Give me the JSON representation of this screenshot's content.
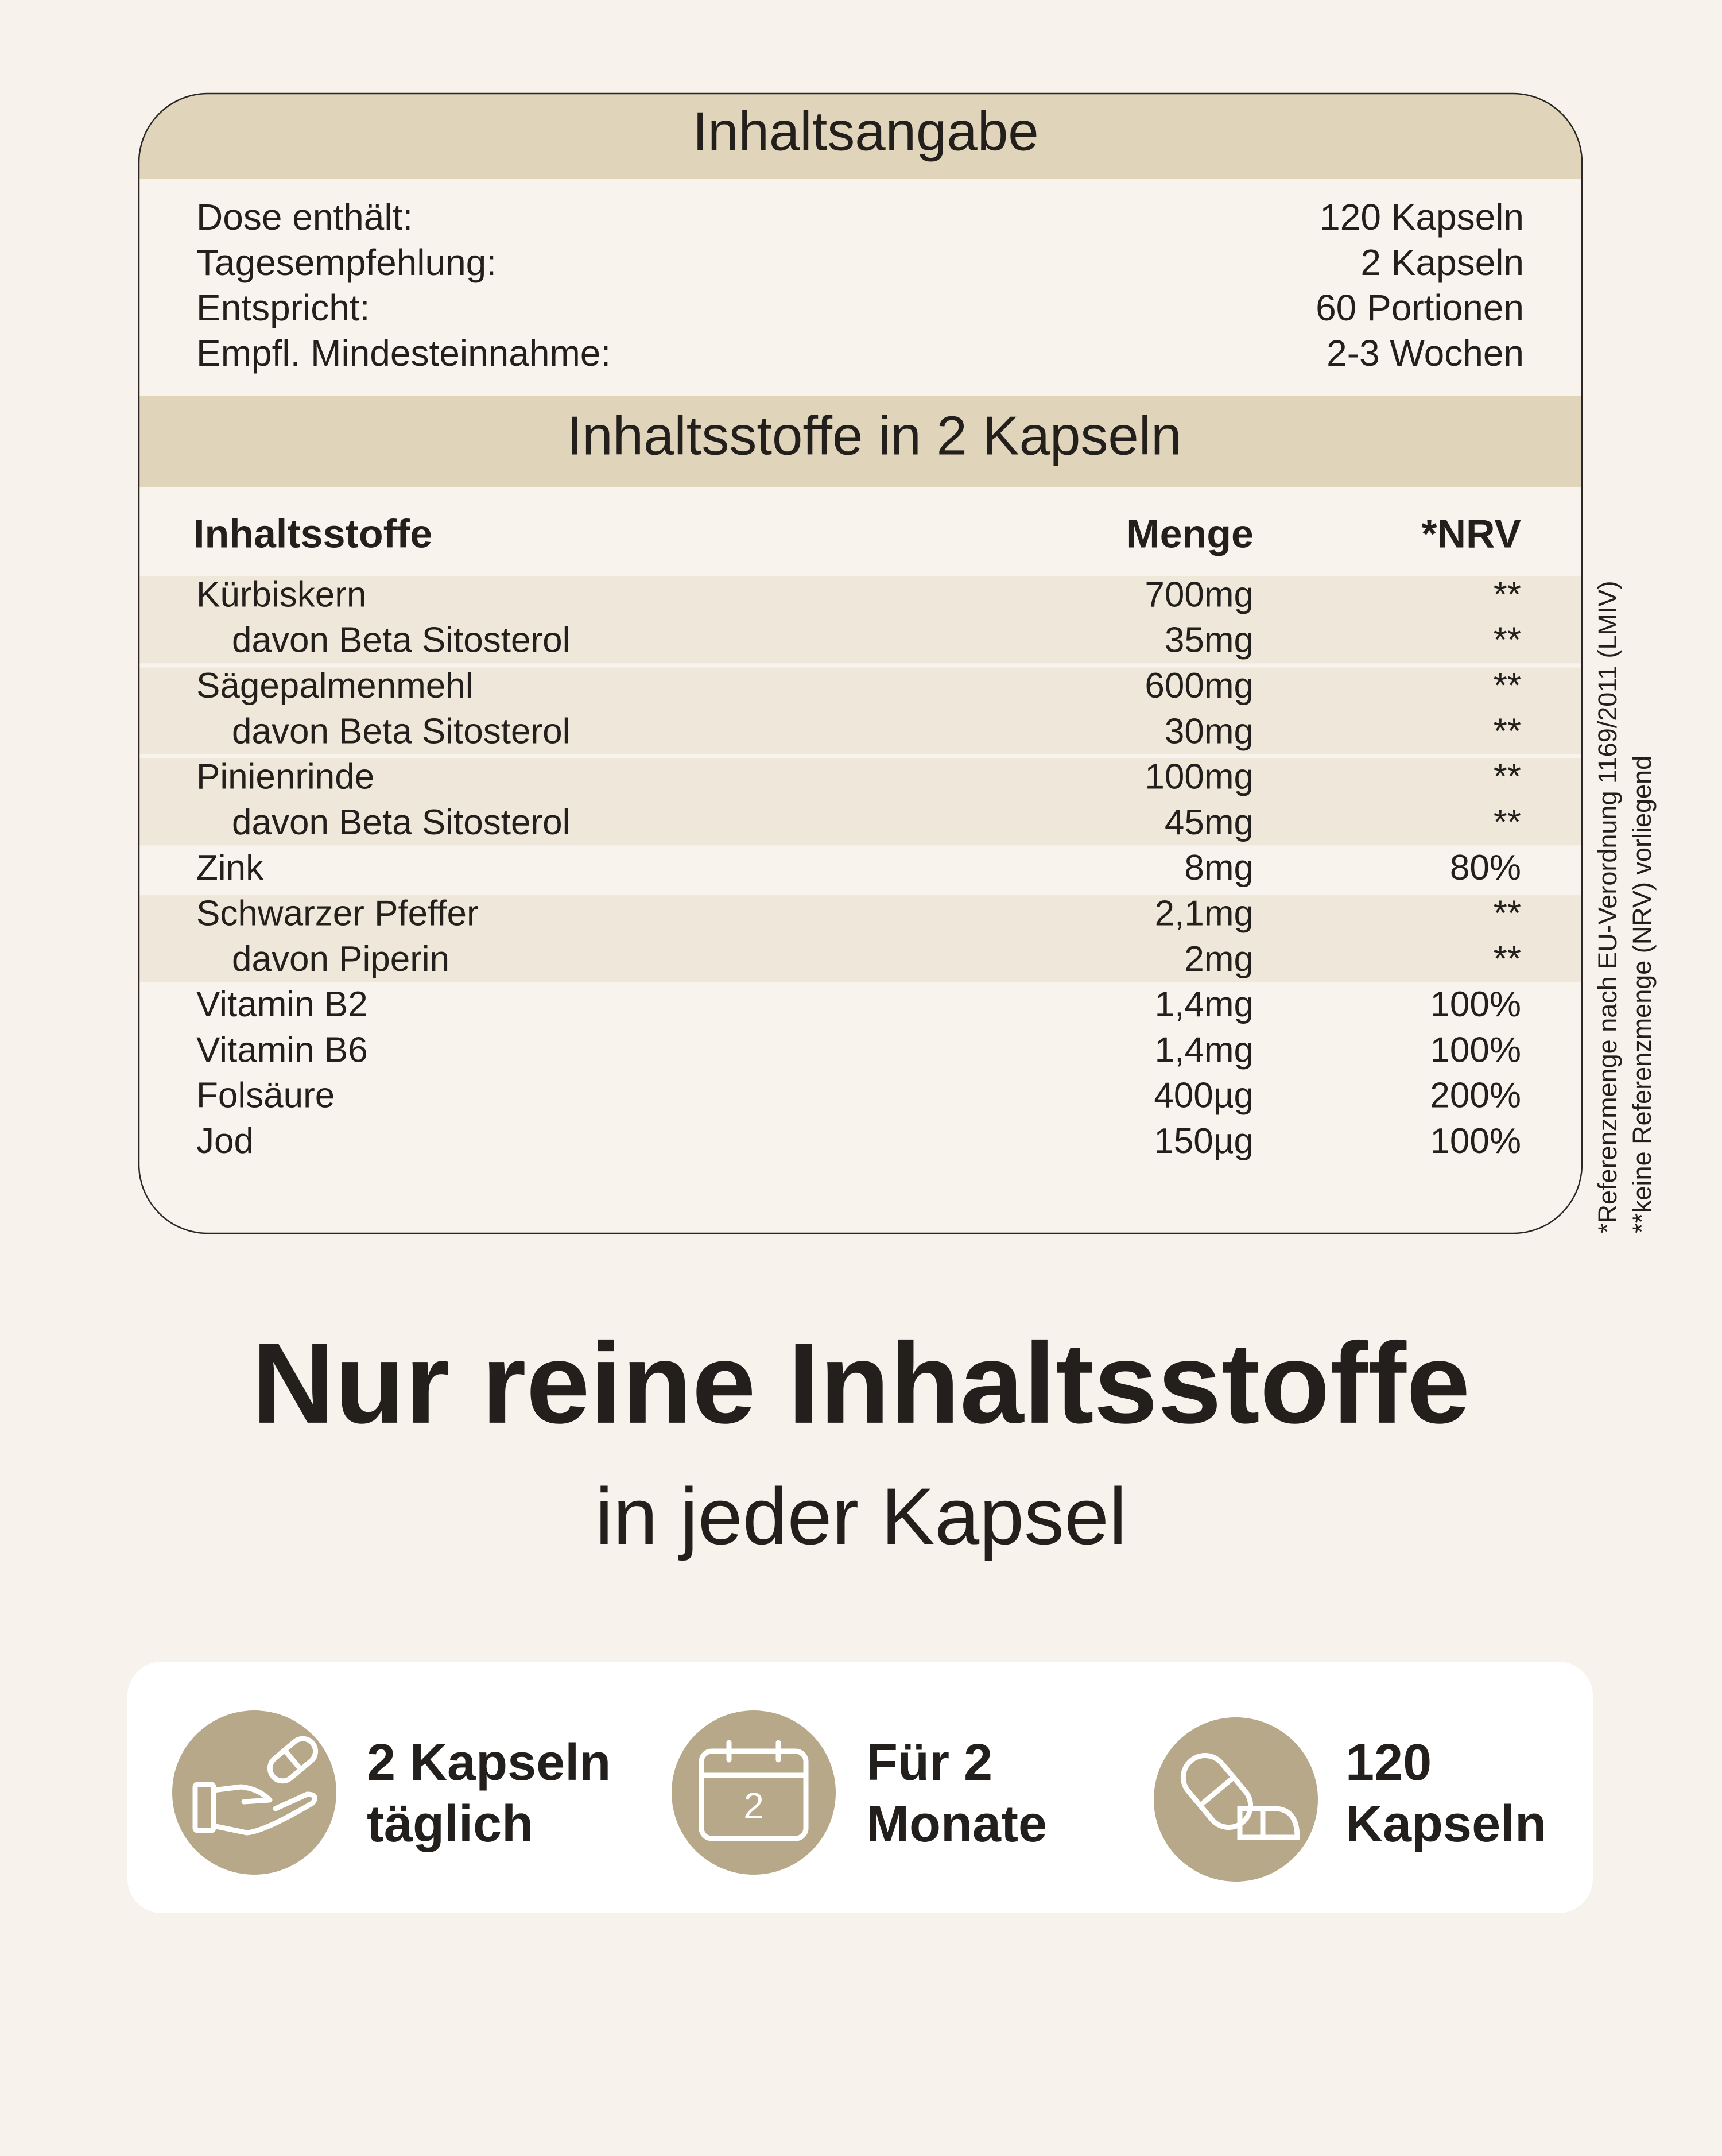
{
  "header": {
    "title": "Inhaltsangabe"
  },
  "summary": {
    "rows": [
      [
        "Dose enthält:",
        "120 Kapseln"
      ],
      [
        "Tagesempfehlung:",
        "2 Kapseln"
      ],
      [
        "Entspricht:",
        "60 Portionen"
      ],
      [
        "Empfl. Mindesteinnahme:",
        "2-3 Wochen"
      ]
    ]
  },
  "ingredients": {
    "title": "Inhaltsstoffe in 2 Kapseln",
    "columns": [
      "Inhaltsstoffe",
      "Menge",
      "*NRV"
    ],
    "rows": [
      {
        "name": "Kürbiskern",
        "amount": "700mg",
        "nrv": "**",
        "parts": [
          {
            "name": "davon Beta Sitosterol",
            "amount": "35mg",
            "nrv": "**"
          }
        ]
      },
      {
        "name": "Sägepalmenmehl",
        "amount": "600mg",
        "nrv": "**",
        "parts": [
          {
            "name": "davon Beta Sitosterol",
            "amount": "30mg",
            "nrv": "**"
          }
        ]
      },
      {
        "name": "Pinienrinde",
        "amount": "100mg",
        "nrv": "**",
        "parts": [
          {
            "name": "davon Beta Sitosterol",
            "amount": "45mg",
            "nrv": "**"
          }
        ]
      },
      {
        "name": "Zink",
        "amount": "8mg",
        "nrv": "80%"
      },
      {
        "name": "Schwarzer Pfeffer",
        "amount": "2,1mg",
        "nrv": "**",
        "parts": [
          {
            "name": "davon Piperin",
            "amount": "2mg",
            "nrv": "**"
          }
        ]
      },
      {
        "name": "Vitamin B2",
        "amount": "1,4mg",
        "nrv": "100%"
      },
      {
        "name": "Vitamin B6",
        "amount": "1,4mg",
        "nrv": "100%"
      },
      {
        "name": "Folsäure",
        "amount": "400µg",
        "nrv": "200%"
      },
      {
        "name": "Jod",
        "amount": "150µg",
        "nrv": "100%"
      }
    ]
  },
  "footnotes": [
    "*Referenzmenge nach EU-Verordnung 1169/2011 (LMIV)",
    "**keine Referenzmenge (NRV) vorliegend"
  ],
  "headline": {
    "title": "Nur reine Inhaltsstoffe",
    "subtitle": "in jeder Kapsel"
  },
  "features": [
    {
      "lines": [
        "2 Kapseln",
        "täglich"
      ]
    },
    {
      "lines": [
        "Für 2",
        "Monate"
      ],
      "icon_label": "2"
    },
    {
      "lines": [
        "120",
        "Kapseln"
      ]
    }
  ]
}
